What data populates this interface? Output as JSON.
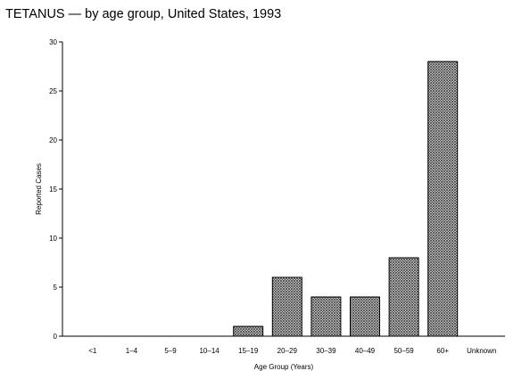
{
  "chart_data": {
    "type": "bar",
    "title": "TETANUS — by age group, United States, 1993",
    "xlabel": "Age Group (Years)",
    "ylabel": "Reported Cases",
    "categories": [
      "<1",
      "1–4",
      "5–9",
      "10–14",
      "15–19",
      "20–29",
      "30–39",
      "40–49",
      "50–59",
      "60+",
      "Unknown"
    ],
    "values": [
      0,
      0,
      0,
      0,
      1,
      6,
      4,
      4,
      8,
      28,
      0
    ],
    "ylim": [
      0,
      30
    ],
    "yticks": [
      0,
      5,
      10,
      15,
      20,
      25,
      30
    ],
    "grid": false,
    "bar_fill": "crosshatch",
    "colors": {
      "bar": "#888888",
      "outline": "#000000",
      "background": "#ffffff"
    }
  }
}
